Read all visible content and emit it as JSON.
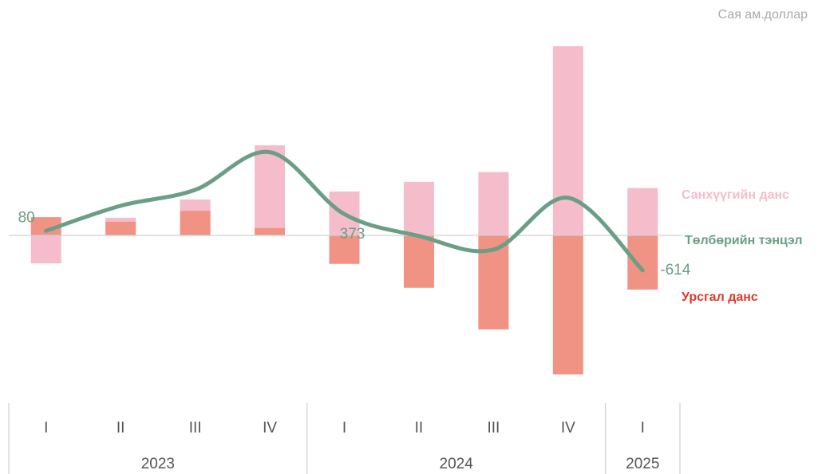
{
  "chart_data": {
    "type": "bar-line",
    "unit_label": "Сая ам.доллар",
    "groups": [
      {
        "name": "2023",
        "categories": [
          "I",
          "II",
          "III",
          "IV"
        ]
      },
      {
        "name": "2024",
        "categories": [
          "I",
          "II",
          "III",
          "IV"
        ]
      },
      {
        "name": "2025",
        "categories": [
          "I"
        ]
      }
    ],
    "ylim": [
      -2730,
      3570
    ],
    "series": [
      {
        "name": "Санхүүгийн данс",
        "type": "bar",
        "color": "#f5bccb",
        "label_color": "#f5bccb",
        "values": [
          -490,
          310,
          630,
          1580,
          770,
          940,
          1110,
          3320,
          830
        ]
      },
      {
        "name": "Урсгал данс",
        "type": "bar",
        "color": "#f09384",
        "label_color": "#e0392b",
        "values": [
          320,
          240,
          430,
          130,
          -500,
          -920,
          -1650,
          -2440,
          -950
        ]
      },
      {
        "name": "Төлбөрийн тэнцэл",
        "type": "line",
        "color": "#6b9e86",
        "label_color": "#6b9e86",
        "values": [
          80,
          520,
          800,
          1460,
          373,
          -10,
          -250,
          660,
          -614
        ],
        "value_labels": [
          "80",
          null,
          null,
          null,
          "373",
          null,
          null,
          null,
          "-614"
        ]
      }
    ]
  }
}
